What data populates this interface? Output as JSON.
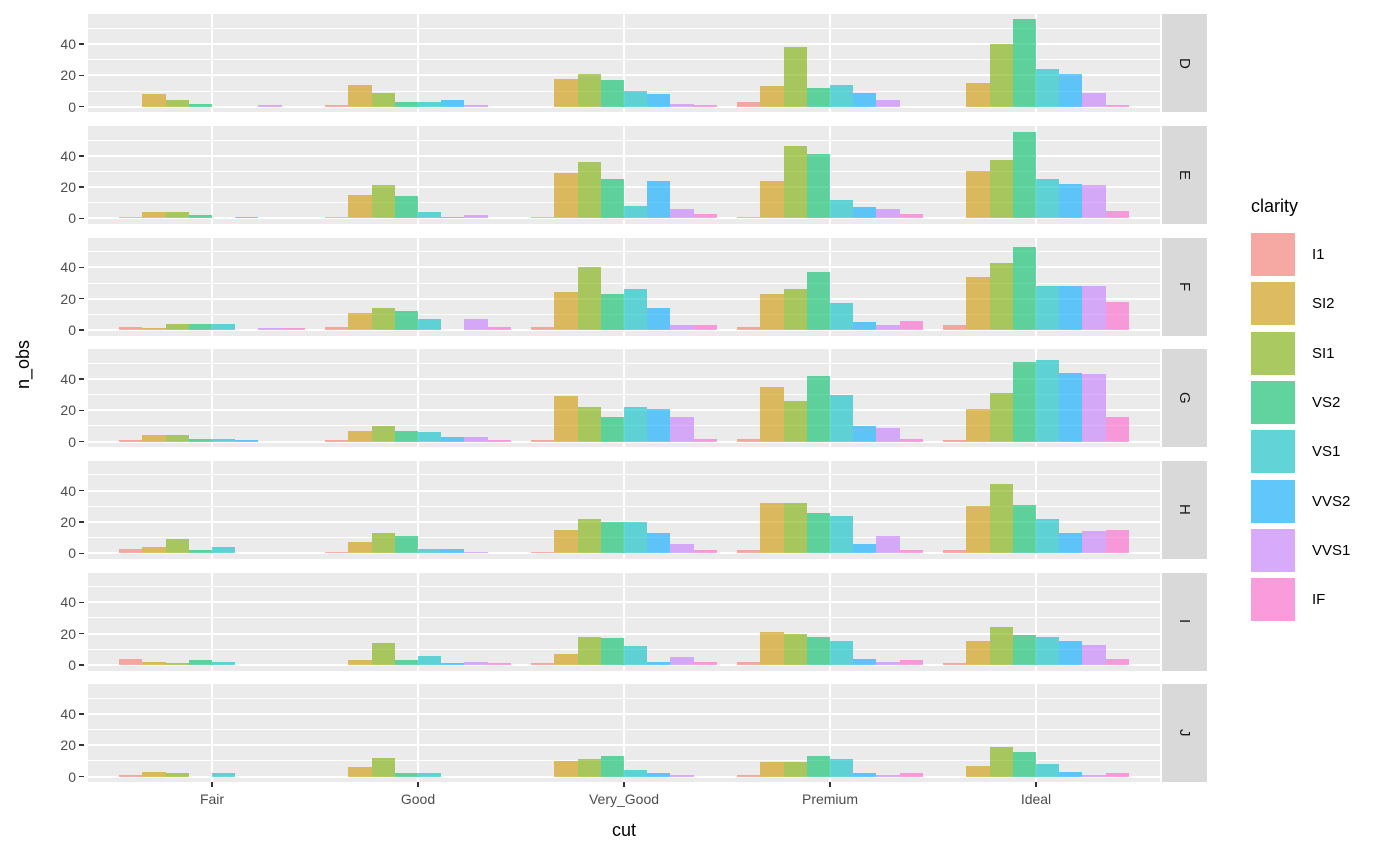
{
  "chart_data": {
    "type": "bar",
    "subtype": "dodged-faceted",
    "title": "",
    "xlabel": "cut",
    "ylabel": "n_obs",
    "legend_title": "clarity",
    "categories": [
      "Fair",
      "Good",
      "Very_Good",
      "Premium",
      "Ideal"
    ],
    "facet_rows": [
      "D",
      "E",
      "F",
      "G",
      "H",
      "I",
      "J"
    ],
    "series_levels": [
      "I1",
      "SI2",
      "SI1",
      "VS2",
      "VS1",
      "VVS2",
      "VVS1",
      "IF"
    ],
    "series_colors": [
      "#F8766D",
      "#CD9600",
      "#7CAE00",
      "#00BE67",
      "#00BFC4",
      "#00A9FF",
      "#C77CFF",
      "#FF61CC"
    ],
    "fill_alpha": 0.6,
    "y_ticks": [
      0,
      20,
      40
    ],
    "y_minor_ticks": [
      10,
      30,
      50
    ],
    "ylim": [
      -3,
      59
    ],
    "grid": true,
    "legend_position": "right",
    "values": {
      "D": {
        "Fair": [
          0,
          8,
          4,
          2,
          0,
          0,
          1,
          0
        ],
        "Good": [
          1,
          14,
          9,
          3,
          3,
          4,
          1,
          0
        ],
        "Very_Good": [
          0,
          18,
          21,
          17,
          10,
          8,
          2,
          1
        ],
        "Premium": [
          3,
          13,
          38,
          12,
          14,
          9,
          4,
          0
        ],
        "Ideal": [
          0,
          15,
          40,
          56,
          24,
          21,
          9,
          1
        ]
      },
      "E": {
        "Fair": [
          1,
          4,
          4,
          2,
          0,
          1,
          0,
          0
        ],
        "Good": [
          1,
          15,
          21,
          14,
          4,
          1,
          2,
          0
        ],
        "Very_Good": [
          1,
          29,
          36,
          25,
          8,
          24,
          6,
          3
        ],
        "Premium": [
          1,
          24,
          46,
          41,
          12,
          7,
          6,
          3
        ],
        "Ideal": [
          0,
          30,
          37,
          55,
          25,
          22,
          21,
          5
        ]
      },
      "F": {
        "Fair": [
          2,
          1,
          4,
          4,
          4,
          0,
          1,
          1
        ],
        "Good": [
          2,
          11,
          14,
          12,
          7,
          0,
          7,
          2
        ],
        "Very_Good": [
          2,
          24,
          40,
          23,
          26,
          14,
          3,
          3
        ],
        "Premium": [
          2,
          23,
          26,
          37,
          17,
          5,
          3,
          6
        ],
        "Ideal": [
          3,
          34,
          43,
          53,
          28,
          28,
          28,
          18
        ]
      },
      "G": {
        "Fair": [
          1,
          4,
          4,
          2,
          2,
          1,
          0,
          0
        ],
        "Good": [
          1,
          7,
          10,
          7,
          6,
          3,
          3,
          1
        ],
        "Very_Good": [
          1,
          29,
          22,
          16,
          22,
          21,
          16,
          2
        ],
        "Premium": [
          2,
          35,
          26,
          42,
          30,
          10,
          9,
          2
        ],
        "Ideal": [
          1,
          21,
          31,
          51,
          52,
          44,
          43,
          16
        ]
      },
      "H": {
        "Fair": [
          3,
          4,
          9,
          2,
          4,
          0,
          0,
          0
        ],
        "Good": [
          1,
          7,
          13,
          11,
          3,
          3,
          1,
          0
        ],
        "Very_Good": [
          1,
          15,
          22,
          20,
          20,
          13,
          6,
          2
        ],
        "Premium": [
          2,
          32,
          32,
          26,
          24,
          6,
          11,
          2
        ],
        "Ideal": [
          2,
          30,
          44,
          31,
          22,
          13,
          14,
          15
        ]
      },
      "I": {
        "Fair": [
          4,
          2,
          1,
          3,
          2,
          0,
          0,
          0
        ],
        "Good": [
          0,
          3,
          14,
          3,
          6,
          1,
          2,
          1
        ],
        "Very_Good": [
          1,
          7,
          18,
          17,
          12,
          2,
          5,
          2
        ],
        "Premium": [
          2,
          21,
          20,
          18,
          15,
          4,
          2,
          3
        ],
        "Ideal": [
          1,
          15,
          24,
          19,
          18,
          15,
          13,
          4
        ]
      },
      "J": {
        "Fair": [
          1,
          3,
          2,
          0,
          2,
          0,
          0,
          0
        ],
        "Good": [
          0,
          6,
          12,
          2,
          2,
          0,
          0,
          0
        ],
        "Very_Good": [
          0,
          10,
          11,
          13,
          4,
          2,
          1,
          0
        ],
        "Premium": [
          1,
          9,
          9,
          13,
          11,
          2,
          1,
          2
        ],
        "Ideal": [
          0,
          7,
          19,
          16,
          8,
          3,
          1,
          2
        ]
      }
    }
  },
  "axes": {
    "x_tick_labels": [
      "Fair",
      "Good",
      "Very_Good",
      "Premium",
      "Ideal"
    ],
    "y_tick_labels": [
      "0",
      "20",
      "40"
    ],
    "x_title": "cut",
    "y_title": "n_obs"
  },
  "legend": {
    "title": "clarity",
    "entries": [
      {
        "label": "I1",
        "color": "#F8766D"
      },
      {
        "label": "SI2",
        "color": "#CD9600"
      },
      {
        "label": "SI1",
        "color": "#7CAE00"
      },
      {
        "label": "VS2",
        "color": "#00BE67"
      },
      {
        "label": "VS1",
        "color": "#00BFC4"
      },
      {
        "label": "VVS2",
        "color": "#00A9FF"
      },
      {
        "label": "VVS1",
        "color": "#C77CFF"
      },
      {
        "label": "IF",
        "color": "#FF61CC"
      }
    ]
  },
  "facet_strips": [
    "D",
    "E",
    "F",
    "G",
    "H",
    "I",
    "J"
  ],
  "theme_colors": {
    "panel_bg": "#EBEBEB",
    "strip_bg": "#D9D9D9",
    "grid": "#FFFFFF",
    "tick_mark": "#333333",
    "tick_label": "#4D4D4D",
    "title_text": "#000000"
  }
}
